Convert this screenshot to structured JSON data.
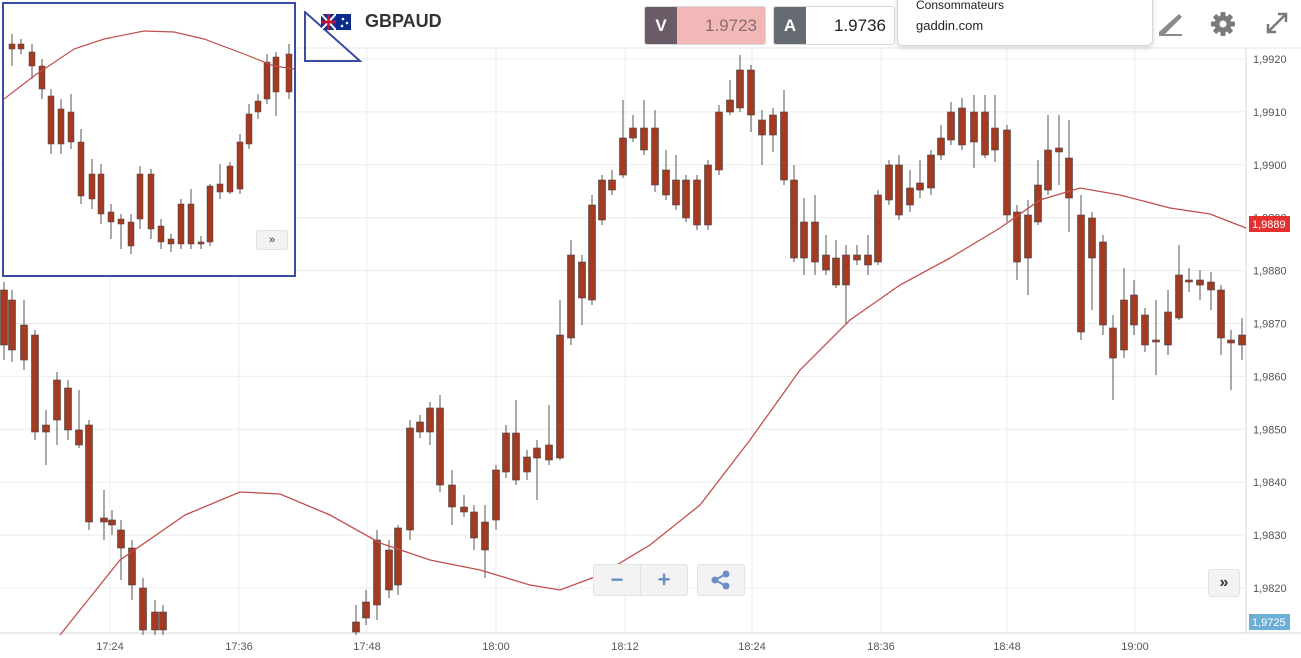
{
  "header": {
    "symbol": "GBPAUD",
    "sell_tag": "V",
    "sell_price": "1.9723",
    "buy_tag": "A",
    "buy_price": "1.9736"
  },
  "popup": {
    "line1": "Consommateurs",
    "line2": "gaddin.com"
  },
  "toolbar": {
    "icons": [
      "draw-icon",
      "gear-icon",
      "fullscreen-icon"
    ]
  },
  "zoom": {
    "minus_label": "−",
    "plus_label": "+"
  },
  "scroll_label": "»",
  "minimap_scroll_label": "»",
  "colors": {
    "bull": "#8fbf88",
    "bear": "#a53a22",
    "ma": "#c0504d",
    "last_price_bg": "#e53030",
    "bottom_price_bg": "#6baed6",
    "minimap_border": "#3b4aa3"
  },
  "chart_data": {
    "type": "candlestick",
    "y_ticks": [
      "1,9920",
      "1,9910",
      "1,9900",
      "1,9890",
      "1,9880",
      "1,9870",
      "1,9860",
      "1,9850",
      "1,9840",
      "1,9830",
      "1,9820"
    ],
    "x_ticks": [
      "17:24",
      "17:36",
      "17:48",
      "18:00",
      "18:12",
      "18:24",
      "18:36",
      "18:48",
      "19:00"
    ],
    "last_price_label": "1,9889",
    "bottom_price_label": "1,9725",
    "grid": true
  }
}
